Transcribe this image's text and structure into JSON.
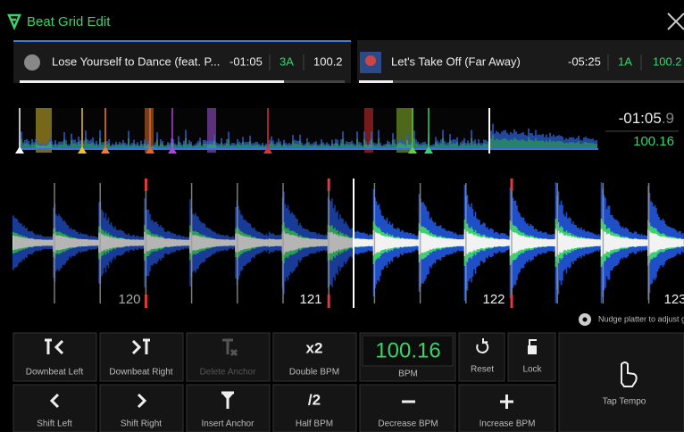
{
  "header": {
    "title": "Beat Grid Edit"
  },
  "decks": [
    {
      "title": "Lose Yourself to Dance (feat. P...",
      "time": "-01:05",
      "key": "3A",
      "bpm": "100.2"
    },
    {
      "title": "Let's Take Off (Far Away)",
      "time": "-05:25",
      "key": "1A",
      "bpm": "100.2"
    }
  ],
  "overview": {
    "time": "-01:05",
    "time_fraction": ".9",
    "bpm": "100.16"
  },
  "beats": [
    "120",
    "121",
    "122",
    "123"
  ],
  "hint": "Nudge platter to adjust grid",
  "buttons": {
    "downbeat_left": "Downbeat Left",
    "downbeat_right": "Downbeat Right",
    "delete_anchor": "Delete Anchor",
    "double_icon": "x2",
    "double_bpm": "Double BPM",
    "bpm_value": "100.16",
    "bpm_label": "BPM",
    "reset": "Reset",
    "lock": "Lock",
    "tap_tempo": "Tap Tempo",
    "shift_left": "Shift Left",
    "shift_right": "Shift Right",
    "insert_anchor": "Insert Anchor",
    "half_icon": "/2",
    "half_bpm": "Half BPM",
    "decrease_bpm": "Decrease BPM",
    "increase_bpm": "Increase BPM"
  }
}
